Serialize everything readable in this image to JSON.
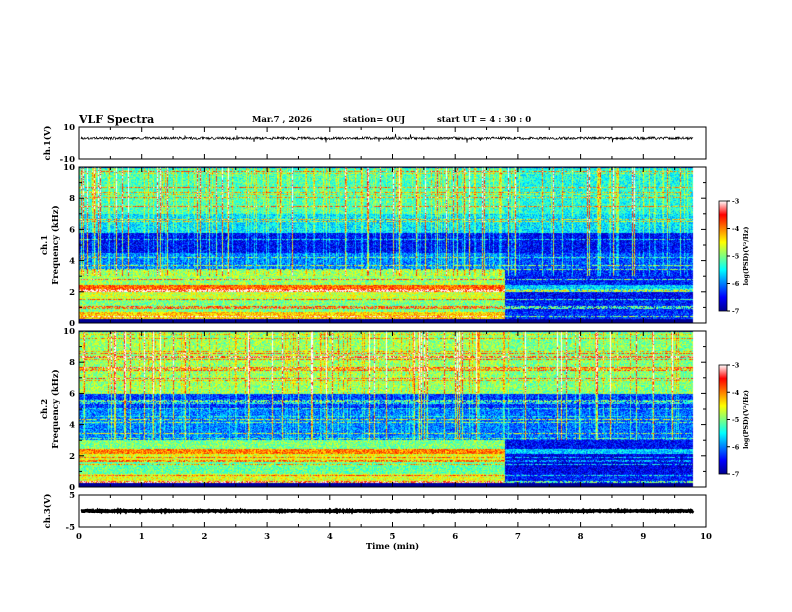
{
  "header": {
    "title": "VLF Spectra",
    "date": "Mar.7  , 2026",
    "station": "station= OUJ",
    "start_time": "start  UT  =   4 : 30 : 0"
  },
  "chart_data": {
    "type": "spectrogram",
    "x_axis": {
      "label": "Time  (min)",
      "range": [
        0,
        10
      ],
      "ticks": [
        "0",
        "1",
        "2",
        "3",
        "4",
        "5",
        "6",
        "7",
        "8",
        "9",
        "10"
      ],
      "data_end_min": 9.8
    },
    "panels": [
      {
        "id": "ch1-waveform",
        "type": "line",
        "ylabel": "ch.1(V)",
        "ylim": [
          -10,
          10
        ],
        "ytick_labels": [
          "10",
          "-10"
        ],
        "baseline_value": 3,
        "noise_amplitude": 0.8
      },
      {
        "id": "ch1-spectrogram",
        "type": "heatmap",
        "channel_label": "ch.1",
        "ylabel": "Frequency (kHz)",
        "ylim": [
          0,
          10
        ],
        "ytick_labels": [
          "0",
          "2",
          "4",
          "6",
          "8",
          "10"
        ],
        "colorbar": {
          "label": "log(PSD)(V²/Hz)",
          "range": [
            -7,
            -3
          ],
          "tick_labels": [
            "-3",
            "-4",
            "-5",
            "-6",
            "-7"
          ]
        },
        "regime_change_min": 6.8,
        "bands": [
          {
            "from_khz": 0.0,
            "to_khz": 0.2,
            "level_before": -7.0,
            "level_after": -7.0
          },
          {
            "from_khz": 0.2,
            "to_khz": 0.7,
            "level_before": -4.3,
            "level_after": -6.3
          },
          {
            "from_khz": 0.7,
            "to_khz": 1.5,
            "level_before": -5.0,
            "level_after": -6.4
          },
          {
            "from_khz": 1.5,
            "to_khz": 2.0,
            "level_before": -4.7,
            "level_after": -6.5
          },
          {
            "from_khz": 2.0,
            "to_khz": 2.4,
            "level_before": -3.9,
            "level_after": -5.7
          },
          {
            "from_khz": 2.4,
            "to_khz": 3.4,
            "level_before": -4.9,
            "level_after": -6.4
          },
          {
            "from_khz": 3.4,
            "to_khz": 4.5,
            "level_before": -6.0,
            "level_after": -6.2
          },
          {
            "from_khz": 4.5,
            "to_khz": 5.8,
            "level_before": -6.5,
            "level_after": -6.5
          },
          {
            "from_khz": 5.8,
            "to_khz": 7.0,
            "level_before": -5.6,
            "level_after": -5.6
          },
          {
            "from_khz": 7.0,
            "to_khz": 10.0,
            "level_before": -5.2,
            "level_after": -5.4
          }
        ]
      },
      {
        "id": "ch2-spectrogram",
        "type": "heatmap",
        "channel_label": "ch.2",
        "ylabel": "Frequency (kHz)",
        "ylim": [
          0,
          10
        ],
        "ytick_labels": [
          "0",
          "2",
          "4",
          "6",
          "8",
          "10"
        ],
        "colorbar": {
          "label": "log(PSD)(V²/Hz)",
          "range": [
            -7,
            -3
          ],
          "tick_labels": [
            "-3",
            "-4",
            "-5",
            "-6",
            "-7"
          ]
        },
        "regime_change_min": 6.8,
        "bands": [
          {
            "from_khz": 0.0,
            "to_khz": 0.2,
            "level_before": -7.0,
            "level_after": -7.0
          },
          {
            "from_khz": 0.2,
            "to_khz": 0.8,
            "level_before": -4.6,
            "level_after": -6.4
          },
          {
            "from_khz": 0.8,
            "to_khz": 1.6,
            "level_before": -5.1,
            "level_after": -6.6
          },
          {
            "from_khz": 1.6,
            "to_khz": 2.1,
            "level_before": -4.6,
            "level_after": -6.6
          },
          {
            "from_khz": 2.1,
            "to_khz": 2.4,
            "level_before": -4.0,
            "level_after": -5.7
          },
          {
            "from_khz": 2.4,
            "to_khz": 3.0,
            "level_before": -5.0,
            "level_after": -6.5
          },
          {
            "from_khz": 3.0,
            "to_khz": 5.0,
            "level_before": -6.0,
            "level_after": -6.1
          },
          {
            "from_khz": 5.0,
            "to_khz": 6.0,
            "level_before": -6.3,
            "level_after": -6.3
          },
          {
            "from_khz": 6.0,
            "to_khz": 10.0,
            "level_before": -4.9,
            "level_after": -5.0
          }
        ]
      },
      {
        "id": "ch3-waveform",
        "type": "line",
        "ylabel": "ch.3(V)",
        "ylim": [
          -5,
          5
        ],
        "ytick_labels": [
          "5",
          "-5"
        ],
        "baseline_value": 0,
        "noise_amplitude": 0.15
      }
    ]
  }
}
